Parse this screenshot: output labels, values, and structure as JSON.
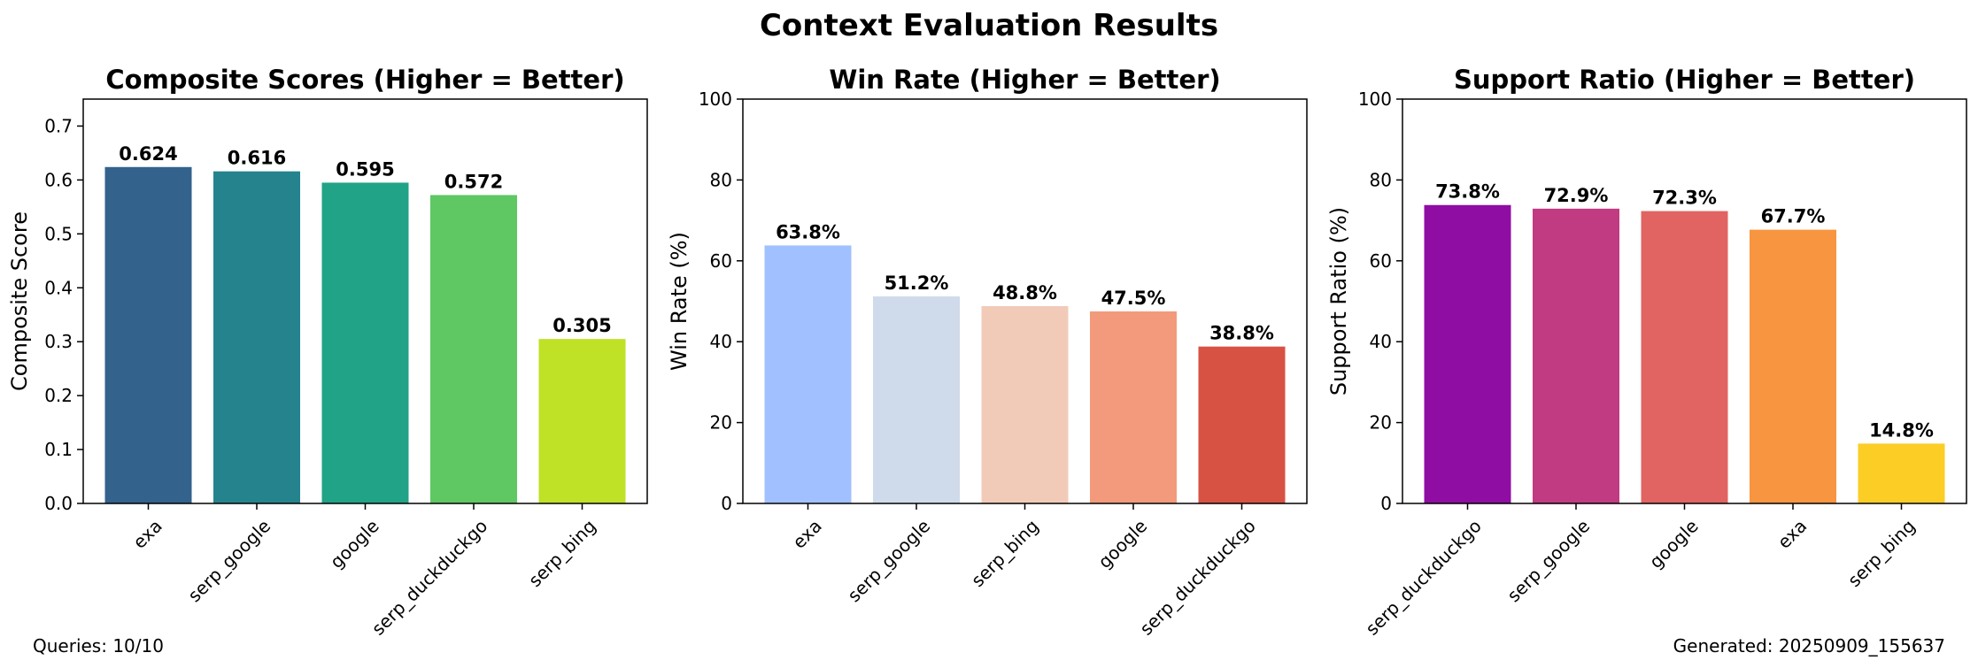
{
  "figure": {
    "title": "Context Evaluation Results",
    "footer_left": "Queries: 10/10",
    "footer_right": "Generated: 20250909_155637"
  },
  "chart_data": [
    {
      "type": "bar",
      "title": "Composite Scores (Higher = Better)",
      "xlabel": "",
      "ylabel": "Composite Score",
      "categories": [
        "exa",
        "serp_google",
        "google",
        "serp_duckduckgo",
        "serp_bing"
      ],
      "values": [
        0.624,
        0.616,
        0.595,
        0.572,
        0.305
      ],
      "value_labels": [
        "0.624",
        "0.616",
        "0.595",
        "0.572",
        "0.305"
      ],
      "ylim": [
        0,
        0.75
      ],
      "yticks": [
        0.0,
        0.1,
        0.2,
        0.3,
        0.4,
        0.5,
        0.6,
        0.7
      ],
      "ytick_labels": [
        "0.0",
        "0.1",
        "0.2",
        "0.3",
        "0.4",
        "0.5",
        "0.6",
        "0.7"
      ],
      "colors": [
        "#33628d",
        "#25838e",
        "#20a386",
        "#5fc862",
        "#bfe126"
      ],
      "grid": false
    },
    {
      "type": "bar",
      "title": "Win Rate (Higher = Better)",
      "xlabel": "",
      "ylabel": "Win Rate (%)",
      "categories": [
        "exa",
        "serp_google",
        "serp_bing",
        "google",
        "serp_duckduckgo"
      ],
      "values": [
        63.8,
        51.2,
        48.8,
        47.5,
        38.8
      ],
      "value_labels": [
        "63.8%",
        "51.2%",
        "48.8%",
        "47.5%",
        "38.8%"
      ],
      "ylim": [
        0,
        100
      ],
      "yticks": [
        0,
        20,
        40,
        60,
        80,
        100
      ],
      "ytick_labels": [
        "0",
        "20",
        "40",
        "60",
        "80",
        "100"
      ],
      "colors": [
        "#a1c0ff",
        "#cfdbea",
        "#f2cbb8",
        "#f29a7b",
        "#d85244"
      ],
      "grid": false
    },
    {
      "type": "bar",
      "title": "Support Ratio (Higher = Better)",
      "xlabel": "",
      "ylabel": "Support Ratio (%)",
      "categories": [
        "serp_duckduckgo",
        "serp_google",
        "google",
        "exa",
        "serp_bing"
      ],
      "values": [
        73.8,
        72.9,
        72.3,
        67.7,
        14.8
      ],
      "value_labels": [
        "73.8%",
        "72.9%",
        "72.3%",
        "67.7%",
        "14.8%"
      ],
      "ylim": [
        0,
        100
      ],
      "yticks": [
        0,
        20,
        40,
        60,
        80,
        100
      ],
      "ytick_labels": [
        "0",
        "20",
        "40",
        "60",
        "80",
        "100"
      ],
      "colors": [
        "#8f0da3",
        "#c13b82",
        "#e16462",
        "#f89540",
        "#fccd25"
      ],
      "grid": false
    }
  ]
}
